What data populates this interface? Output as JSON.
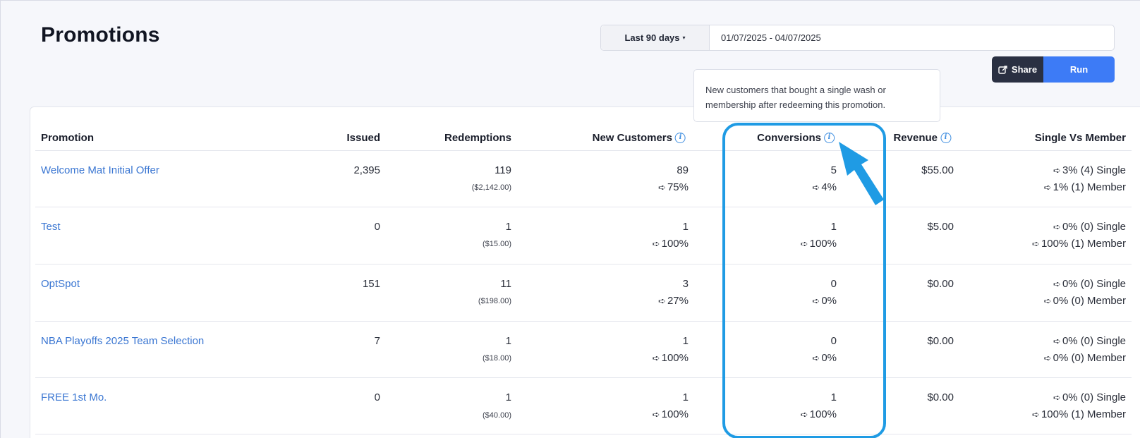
{
  "page": {
    "title": "Promotions"
  },
  "filters": {
    "range_label": "Last 90 days",
    "caret": "▾",
    "date_range": "01/07/2025 - 04/07/2025"
  },
  "actions": {
    "share_label": "Share",
    "run_label": "Run"
  },
  "tooltip": {
    "text": "New customers that bought a single wash or membership after redeeming this promotion."
  },
  "table": {
    "columns": {
      "promotion": "Promotion",
      "issued": "Issued",
      "redemptions": "Redemptions",
      "new_customers": "New Customers",
      "conversions": "Conversions",
      "revenue": "Revenue",
      "single_vs_member": "Single Vs Member"
    },
    "rows": [
      {
        "name": "Welcome Mat Initial Offer",
        "issued": "2,395",
        "redemptions": "119",
        "redemptions_amount": "($2,142.00)",
        "new_customers": "89",
        "new_customers_pct": "75%",
        "conversions": "5",
        "conversions_pct": "4%",
        "revenue": "$55.00",
        "single": "3% (4) Single",
        "member": "1% (1) Member"
      },
      {
        "name": "Test",
        "issued": "0",
        "redemptions": "1",
        "redemptions_amount": "($15.00)",
        "new_customers": "1",
        "new_customers_pct": "100%",
        "conversions": "1",
        "conversions_pct": "100%",
        "revenue": "$5.00",
        "single": "0% (0) Single",
        "member": "100% (1) Member"
      },
      {
        "name": "OptSpot",
        "issued": "151",
        "redemptions": "11",
        "redemptions_amount": "($198.00)",
        "new_customers": "3",
        "new_customers_pct": "27%",
        "conversions": "0",
        "conversions_pct": "0%",
        "revenue": "$0.00",
        "single": "0% (0) Single",
        "member": "0% (0) Member"
      },
      {
        "name": "NBA Playoffs 2025 Team Selection",
        "issued": "7",
        "redemptions": "1",
        "redemptions_amount": "($18.00)",
        "new_customers": "1",
        "new_customers_pct": "100%",
        "conversions": "0",
        "conversions_pct": "0%",
        "revenue": "$0.00",
        "single": "0% (0) Single",
        "member": "0% (0) Member"
      },
      {
        "name": "FREE 1st Mo.",
        "issued": "0",
        "redemptions": "1",
        "redemptions_amount": "($40.00)",
        "new_customers": "1",
        "new_customers_pct": "100%",
        "conversions": "1",
        "conversions_pct": "100%",
        "revenue": "$0.00",
        "single": "0% (0) Single",
        "member": "100% (1) Member"
      }
    ]
  },
  "icons": {
    "share": "share-icon",
    "info": "info-icon",
    "trend": "arrow-right-icon"
  },
  "colors": {
    "accent": "#3d7bf6",
    "link": "#3a76d2",
    "highlight": "#1f9be4",
    "dark_button": "#2a3042"
  }
}
